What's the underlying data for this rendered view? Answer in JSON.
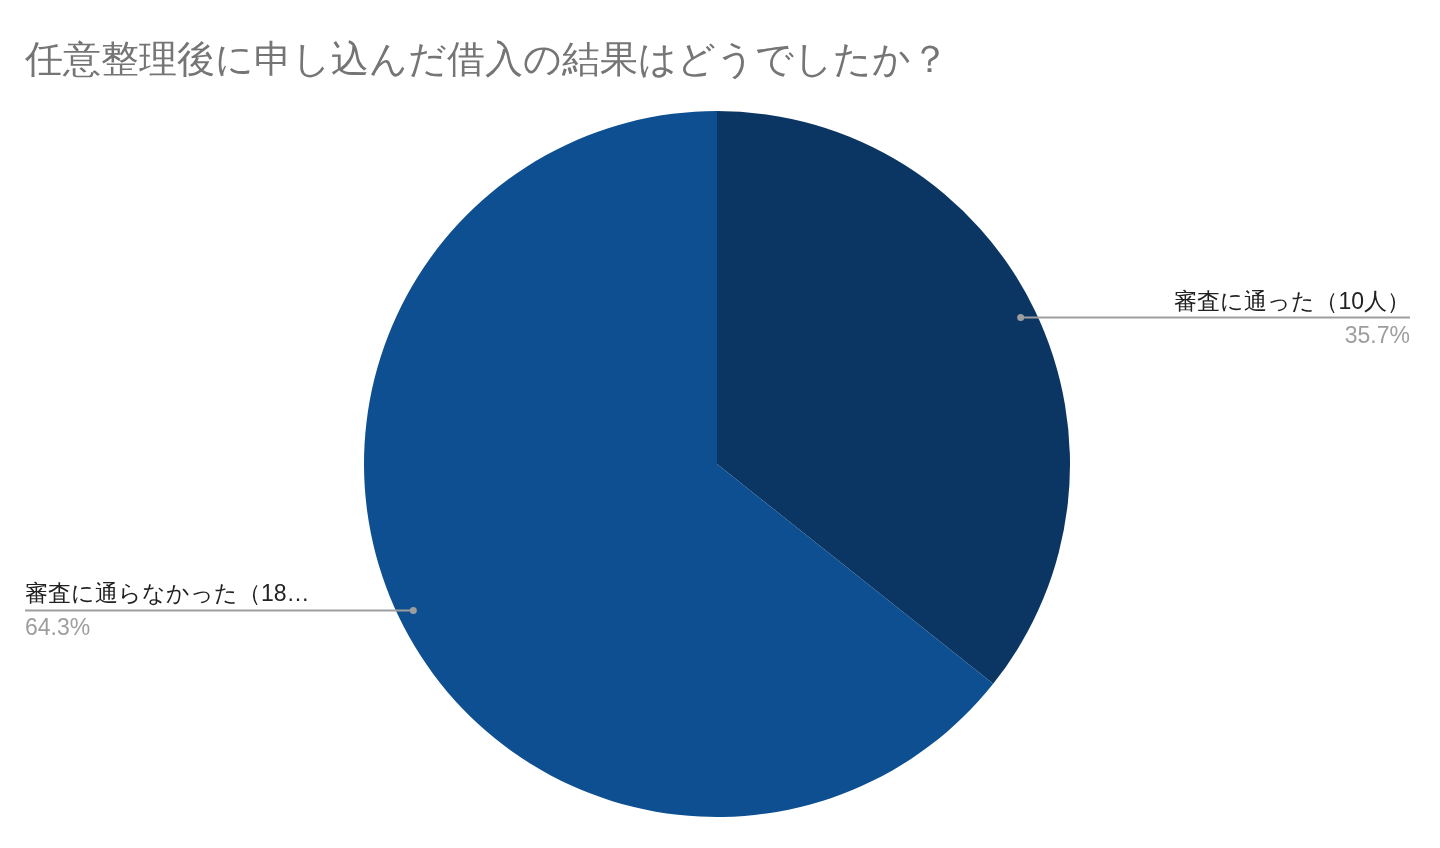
{
  "chart_data": {
    "type": "pie",
    "title": "任意整理後に申し込んだ借入の結果はどうでしたか？",
    "categories": [
      "審査に通った（10人）",
      "審査に通らなかった（18…"
    ],
    "values": [
      35.7,
      64.3
    ],
    "colors": [
      "#0b3562",
      "#0d4f91"
    ],
    "value_labels": [
      "35.7%",
      "64.3%"
    ],
    "legend": false
  }
}
